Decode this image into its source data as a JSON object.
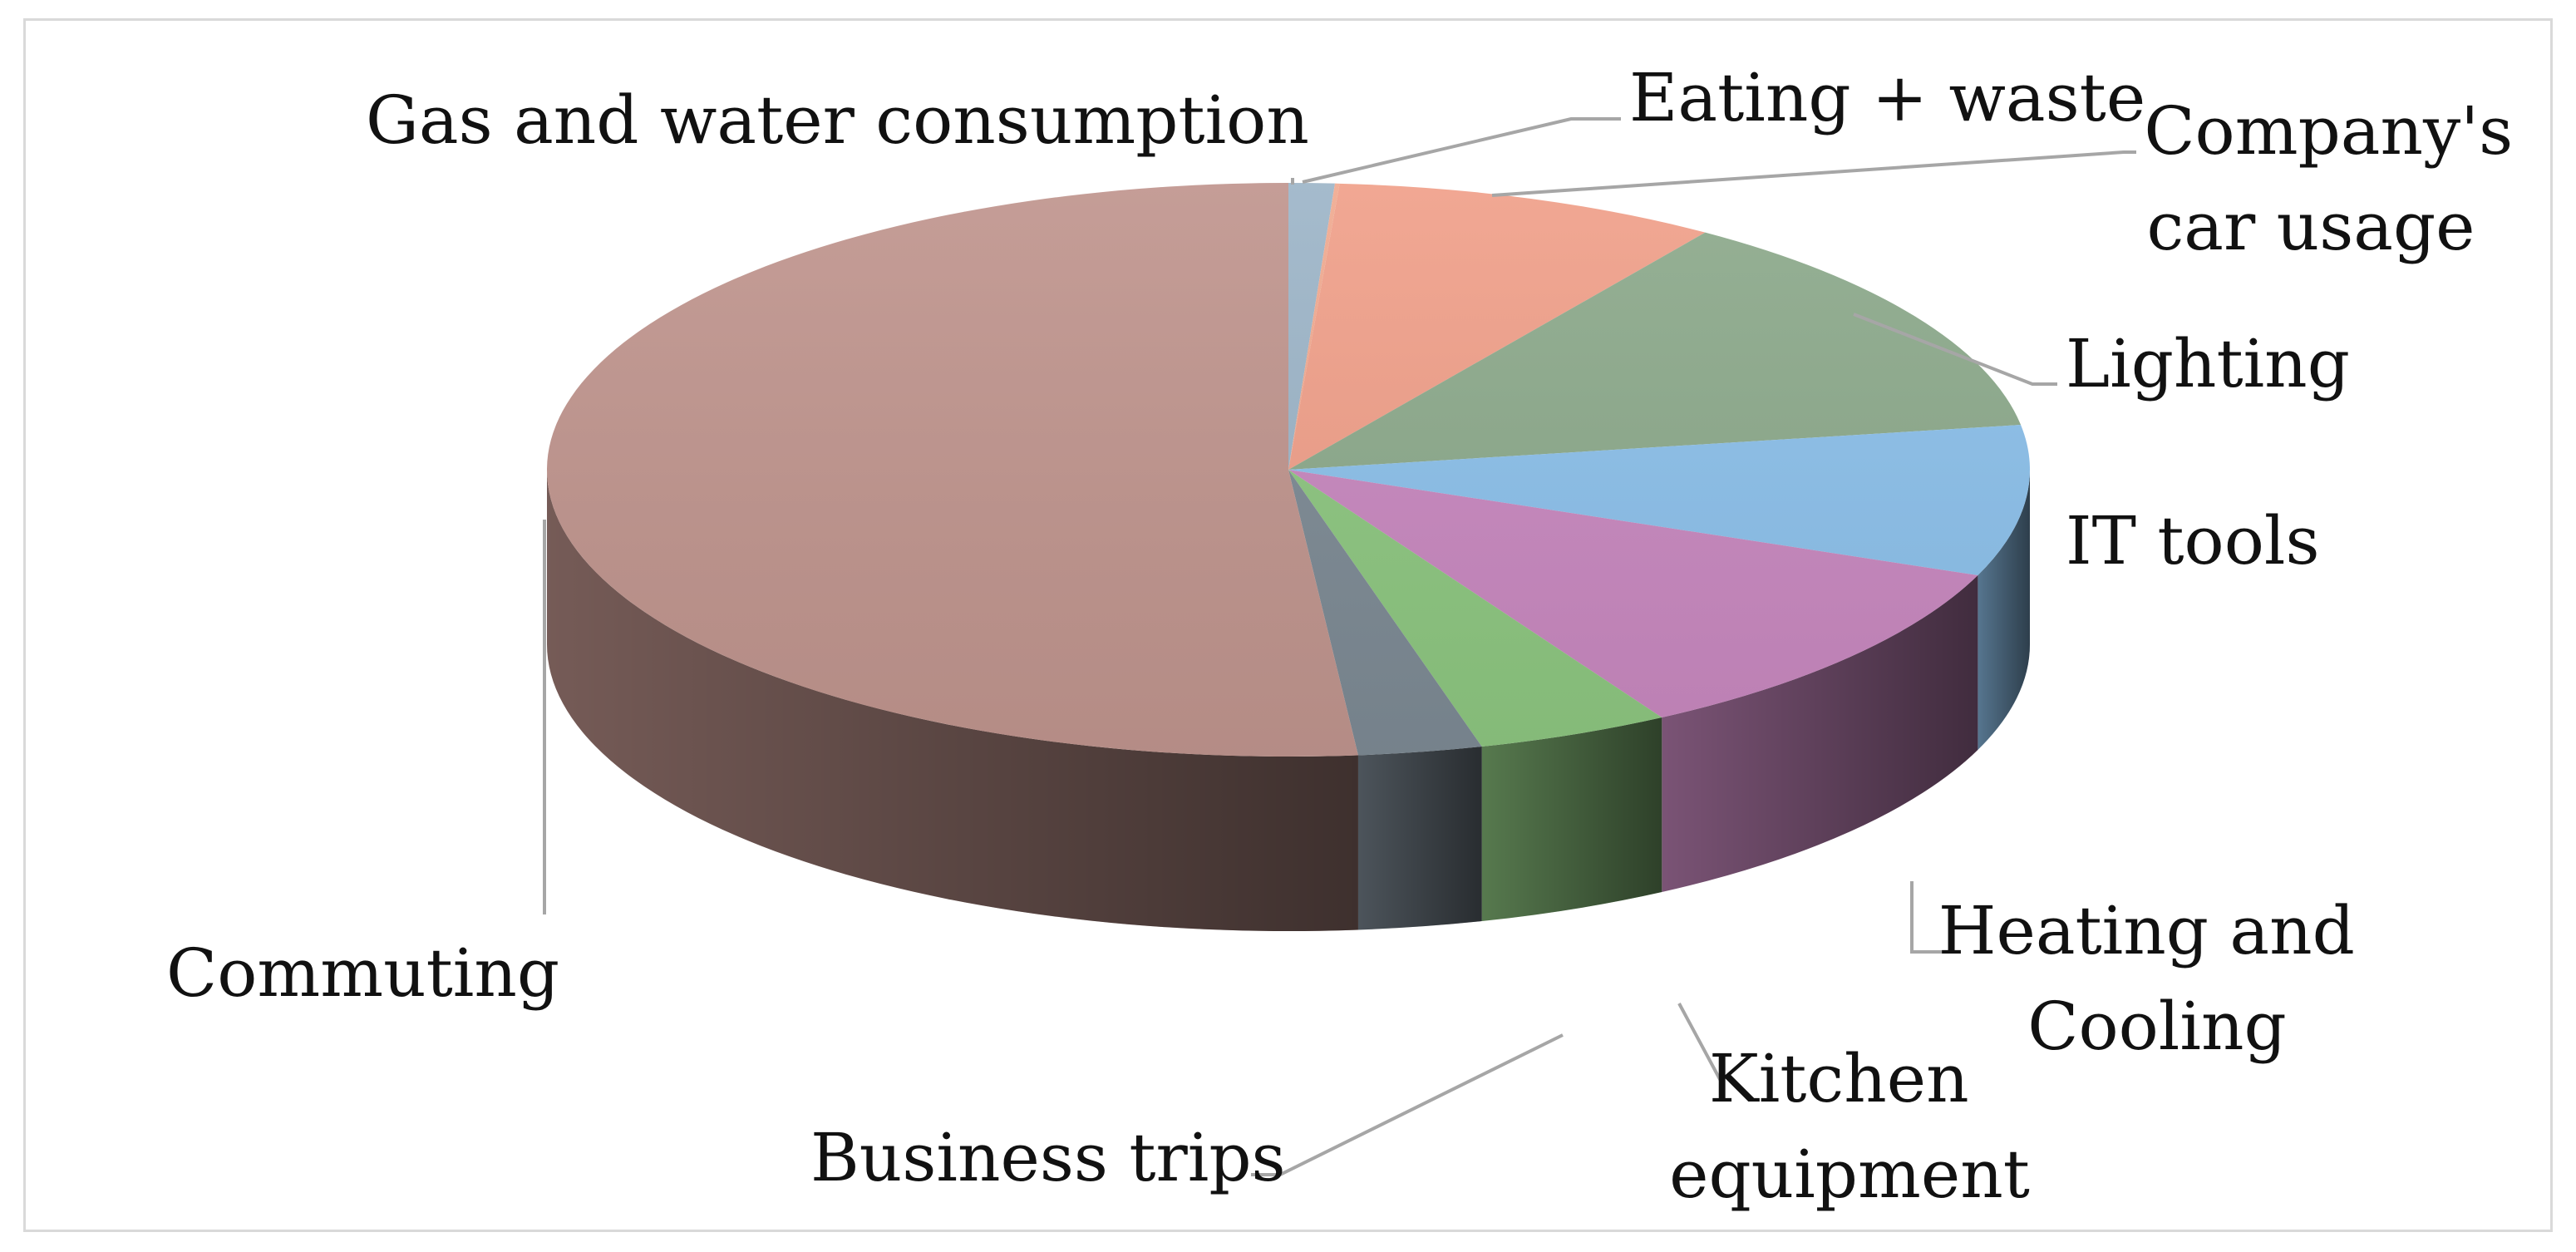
{
  "chart_data": {
    "type": "pie",
    "title": "",
    "style": "3d-exploded-perspective",
    "legend": "none",
    "slices": [
      {
        "label": "Gas and water consumption",
        "value": 1.0,
        "color": "#9db5c8"
      },
      {
        "label": "Eating + waste",
        "value": 0.1,
        "color": "#f0aa90"
      },
      {
        "label": "Company's car usage",
        "value": 8.4,
        "color": "#f0a08a"
      },
      {
        "label": "Lighting",
        "value": 13.0,
        "color": "#8daa8c"
      },
      {
        "label": "IT tools",
        "value": 8.5,
        "color": "#8cc0ea"
      },
      {
        "label": "Heating and Cooling",
        "value": 10.6,
        "color": "#c888bf"
      },
      {
        "label": "Kitchen equipment",
        "value": 4.2,
        "color": "#8dc680"
      },
      {
        "label": "Business trips",
        "value": 2.7,
        "color": "#7d8a94"
      },
      {
        "label": "Commuting",
        "value": 51.5,
        "color": "#c0958e"
      }
    ]
  }
}
